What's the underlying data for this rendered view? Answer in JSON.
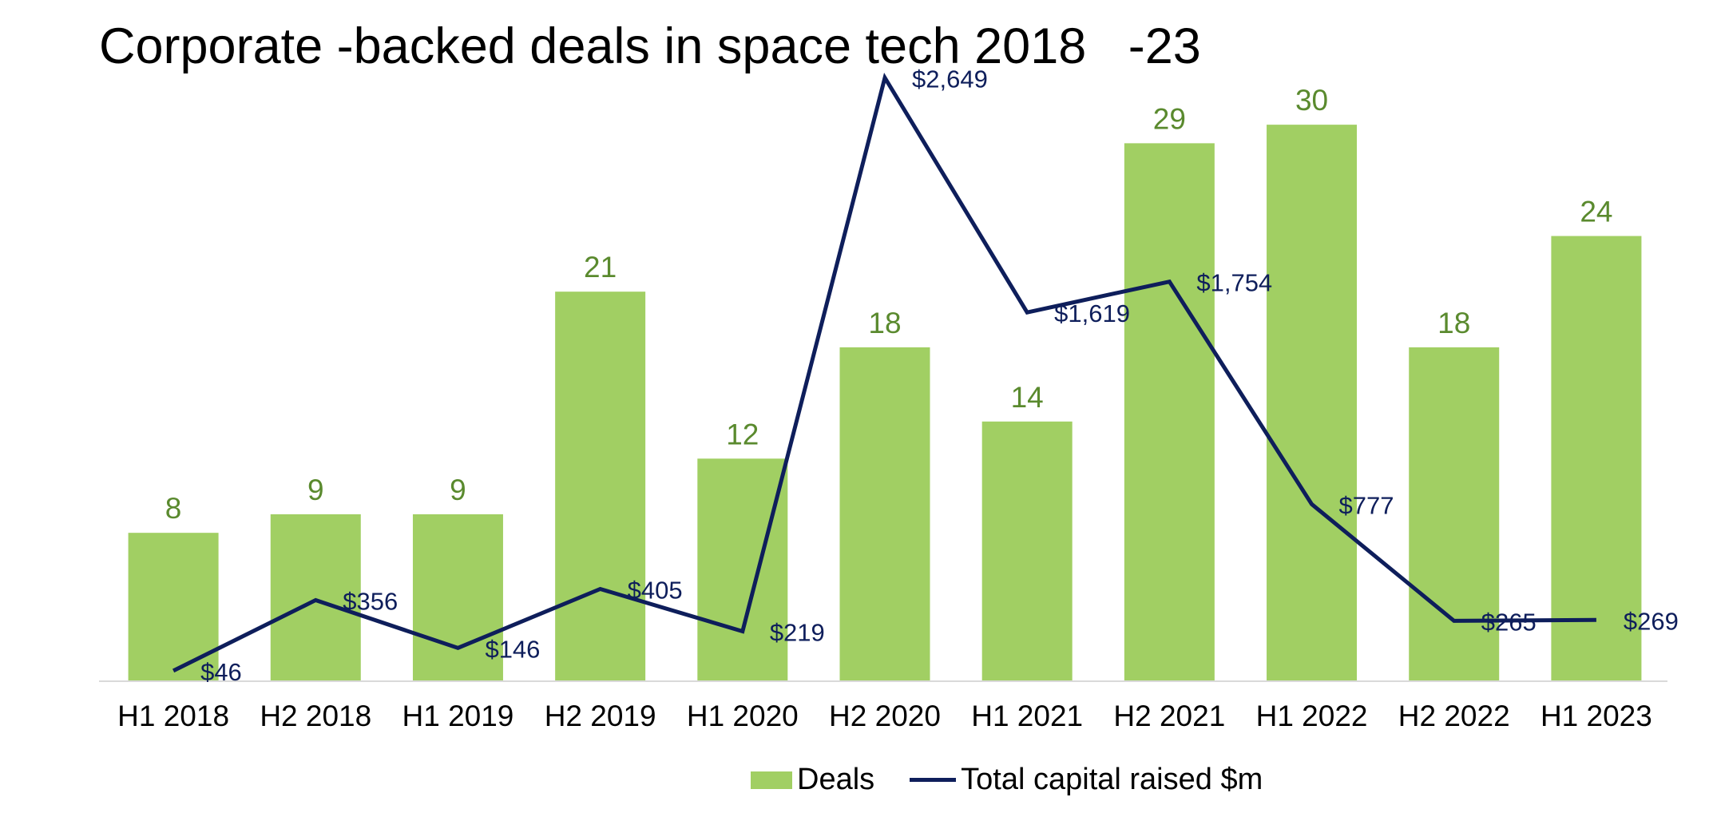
{
  "chart_data": {
    "type": "bar",
    "title": "Corporate -backed deals in space tech 2018   -23",
    "categories": [
      "H1 2018",
      "H2 2018",
      "H1 2019",
      "H2 2019",
      "H1 2020",
      "H2 2020",
      "H1 2021",
      "H2 2021",
      "H1 2022",
      "H2 2022",
      "H1 2023"
    ],
    "series": [
      {
        "name": "Deals",
        "type": "bar",
        "axis": "left",
        "values": [
          8,
          9,
          9,
          21,
          12,
          18,
          14,
          29,
          30,
          18,
          24
        ],
        "labels": [
          "8",
          "9",
          "9",
          "21",
          "12",
          "18",
          "14",
          "29",
          "30",
          "18",
          "24"
        ],
        "color": "#A1CF63",
        "label_color": "#5A8A2E"
      },
      {
        "name": "Total capital raised $m",
        "type": "line",
        "axis": "right",
        "values": [
          46,
          356,
          146,
          405,
          219,
          2649,
          1619,
          1754,
          777,
          265,
          269
        ],
        "labels": [
          "$46",
          "$356",
          "$146",
          "$405",
          "$219",
          "$2,649",
          "$1,619",
          "$1,754",
          "$777",
          "$265",
          "$269"
        ],
        "color": "#0E1E5B"
      }
    ],
    "ylim_left": [
      0,
      35
    ],
    "ylim_right": [
      0,
      2850
    ],
    "grid": false,
    "legend": "bottom",
    "xlabel": "",
    "ylabel": ""
  }
}
